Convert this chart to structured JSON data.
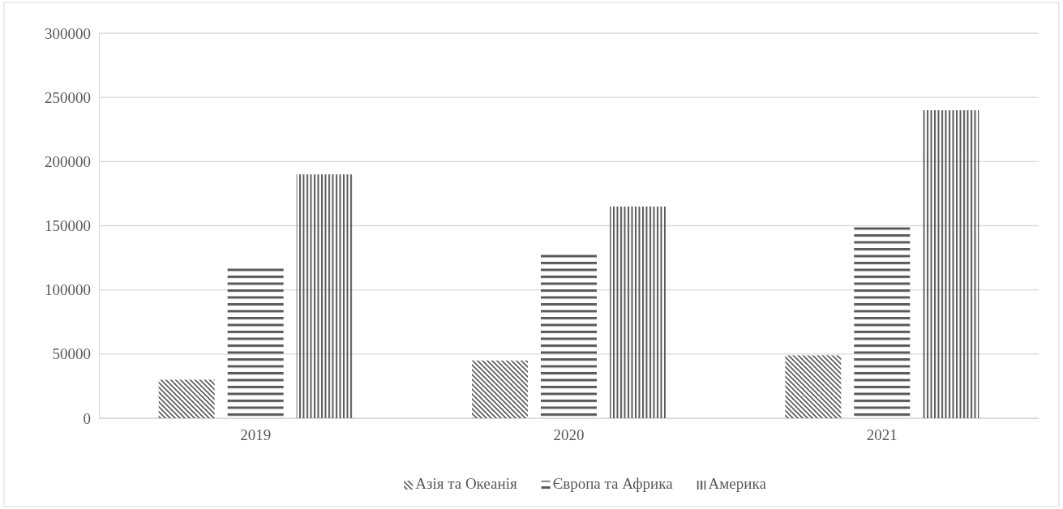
{
  "chart_data": {
    "type": "bar",
    "categories": [
      "2019",
      "2020",
      "2021"
    ],
    "series": [
      {
        "name": "Азія та Океанія",
        "color": "#595959",
        "values": [
          30000,
          45000,
          49000
        ]
      },
      {
        "name": "Європа та Африка",
        "color": "#595959",
        "values": [
          118000,
          128000,
          149000
        ]
      },
      {
        "name": "Америка",
        "color": "#595959",
        "values": [
          190000,
          165000,
          240000
        ]
      }
    ],
    "ylim": [
      0,
      300000
    ],
    "yticks": [
      0,
      50000,
      100000,
      150000,
      200000,
      250000,
      300000
    ],
    "grid": "y",
    "legend": "bottom"
  }
}
